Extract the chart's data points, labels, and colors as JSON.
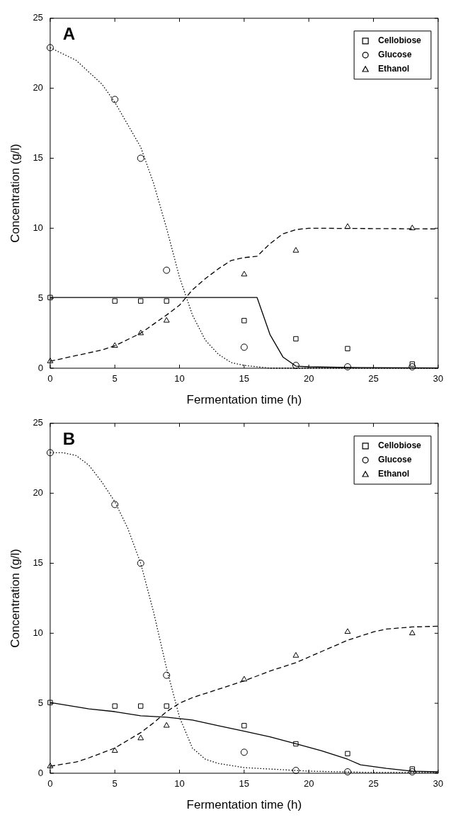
{
  "chart_data": [
    {
      "type": "scatter",
      "annotations": [
        "A"
      ],
      "xlabel": "Fermentation time (h)",
      "ylabel": "Concentration (g/l)",
      "xlim": [
        0,
        30
      ],
      "xticks": [
        0,
        5,
        10,
        15,
        20,
        25,
        30
      ],
      "ylim": [
        0,
        25
      ],
      "yticks": [
        0,
        5,
        10,
        15,
        20,
        25
      ],
      "grid": false,
      "legend": "top right",
      "series": [
        {
          "name": "Cellobiose",
          "color": "#000000",
          "marker": "square",
          "x": [
            0,
            5,
            7,
            9,
            15,
            19,
            23,
            28
          ],
          "values": [
            5.05,
            4.8,
            4.8,
            4.8,
            3.4,
            2.1,
            1.4,
            0.3
          ]
        },
        {
          "name": "Glucose",
          "color": "#000000",
          "marker": "circle",
          "x": [
            0,
            5,
            7,
            9,
            15,
            19,
            23,
            28
          ],
          "values": [
            22.9,
            19.2,
            15.0,
            7.0,
            1.5,
            0.2,
            0.1,
            0.1
          ]
        },
        {
          "name": "Ethanol",
          "color": "#000000",
          "marker": "triangle",
          "x": [
            0,
            5,
            7,
            9,
            15,
            19,
            23,
            28
          ],
          "values": [
            0.5,
            1.6,
            2.5,
            3.4,
            6.7,
            8.4,
            10.1,
            10.0
          ]
        },
        {
          "type": "line",
          "color": "#000000",
          "marker": "none",
          "line_style": "solid",
          "x": [
            0,
            16,
            17,
            18,
            19,
            20,
            23,
            30
          ],
          "values": [
            5.05,
            5.05,
            2.4,
            0.8,
            0.15,
            0.1,
            0.05,
            0.02
          ]
        },
        {
          "type": "line",
          "color": "#000000",
          "marker": "none",
          "line_style": "dotted",
          "x": [
            0,
            2,
            4,
            5,
            7,
            8,
            9,
            10,
            11,
            12,
            13,
            14,
            15,
            17,
            20,
            30
          ],
          "values": [
            22.9,
            22,
            20.3,
            19,
            15.8,
            13.2,
            10,
            6.5,
            3.8,
            2,
            1.0,
            0.4,
            0.2,
            0,
            0,
            0
          ]
        },
        {
          "type": "line",
          "color": "#000000",
          "marker": "none",
          "line_style": "dashed",
          "x": [
            0,
            2,
            4,
            5,
            7,
            9,
            10,
            11,
            12,
            13,
            14,
            15,
            16,
            17,
            18,
            19,
            20,
            30
          ],
          "values": [
            0.5,
            0.9,
            1.3,
            1.6,
            2.5,
            3.8,
            4.5,
            5.6,
            6.4,
            7.1,
            7.7,
            7.9,
            8.0,
            8.9,
            9.6,
            9.9,
            10,
            9.95
          ]
        }
      ]
    },
    {
      "type": "scatter",
      "annotations": [
        "B"
      ],
      "xlabel": "Fermentation time (h)",
      "ylabel": "Concentration (g/l)",
      "xlim": [
        0,
        30
      ],
      "xticks": [
        0,
        5,
        10,
        15,
        20,
        25,
        30
      ],
      "ylim": [
        0,
        25
      ],
      "yticks": [
        0,
        5,
        10,
        15,
        20,
        25
      ],
      "grid": false,
      "legend": "top right",
      "series": [
        {
          "name": "Cellobiose",
          "color": "#000000",
          "marker": "square",
          "x": [
            0,
            5,
            7,
            9,
            15,
            19,
            23,
            28
          ],
          "values": [
            5.05,
            4.8,
            4.8,
            4.8,
            3.4,
            2.1,
            1.4,
            0.3
          ]
        },
        {
          "name": "Glucose",
          "color": "#000000",
          "marker": "circle",
          "x": [
            0,
            5,
            7,
            9,
            15,
            19,
            23,
            28
          ],
          "values": [
            22.9,
            19.2,
            15.0,
            7.0,
            1.5,
            0.2,
            0.1,
            0.1
          ]
        },
        {
          "name": "Ethanol",
          "color": "#000000",
          "marker": "triangle",
          "x": [
            0,
            5,
            7,
            9,
            15,
            19,
            23,
            28
          ],
          "values": [
            0.5,
            1.6,
            2.5,
            3.4,
            6.7,
            8.4,
            10.1,
            10.0
          ]
        },
        {
          "type": "line",
          "color": "#000000",
          "marker": "none",
          "line_style": "solid",
          "x": [
            0,
            3,
            5,
            7,
            9,
            10,
            11,
            13,
            15,
            17,
            19,
            21,
            23,
            24,
            26,
            28,
            30
          ],
          "values": [
            5.05,
            4.6,
            4.4,
            4.1,
            4.0,
            3.9,
            3.8,
            3.4,
            3.0,
            2.6,
            2.1,
            1.6,
            1.0,
            0.6,
            0.35,
            0.15,
            0.1
          ]
        },
        {
          "type": "line",
          "color": "#000000",
          "marker": "none",
          "line_style": "dotted",
          "x": [
            0,
            1,
            2,
            3,
            4,
            5,
            6,
            7,
            8,
            9,
            10,
            11,
            12,
            13,
            15,
            18,
            20,
            25,
            30
          ],
          "values": [
            22.9,
            22.9,
            22.7,
            22,
            20.8,
            19.4,
            17.5,
            15,
            11.5,
            7.5,
            4.0,
            1.8,
            1.0,
            0.7,
            0.4,
            0.25,
            0.15,
            0.05,
            0.05
          ]
        },
        {
          "type": "line",
          "color": "#000000",
          "marker": "none",
          "line_style": "dashed",
          "x": [
            0,
            2,
            3,
            5,
            7,
            8,
            9,
            10,
            11,
            12,
            14,
            15,
            17,
            19,
            21,
            23,
            25,
            26,
            28,
            30
          ],
          "values": [
            0.5,
            0.8,
            1.1,
            1.8,
            2.9,
            3.6,
            4.4,
            5.0,
            5.4,
            5.7,
            6.3,
            6.6,
            7.3,
            7.9,
            8.7,
            9.5,
            10.1,
            10.3,
            10.45,
            10.5
          ]
        }
      ]
    }
  ]
}
